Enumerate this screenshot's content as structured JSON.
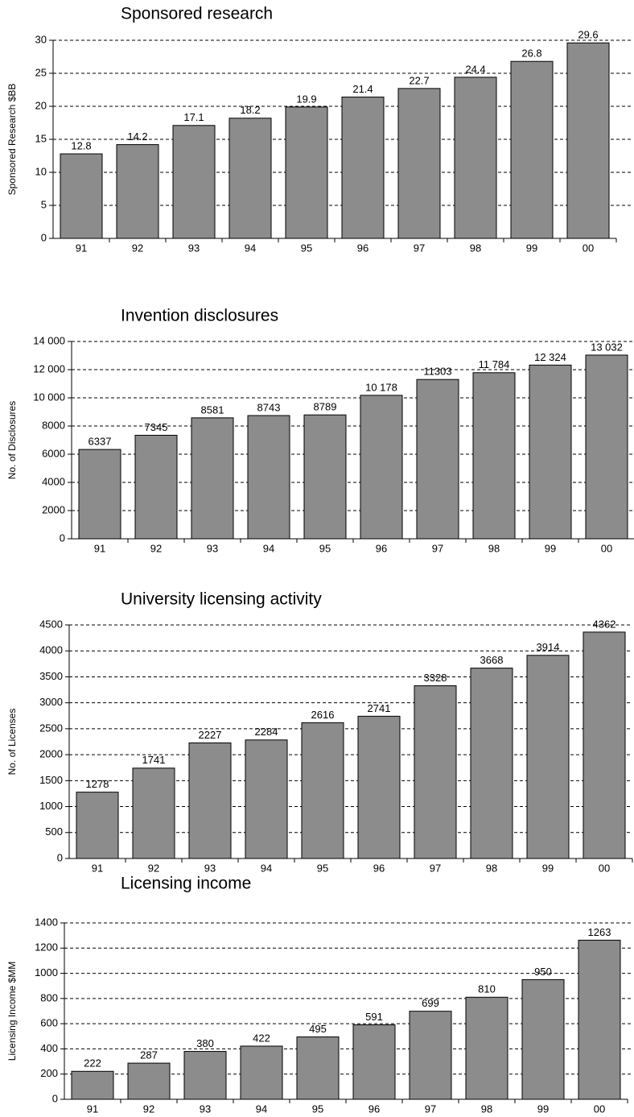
{
  "chart_data": [
    {
      "type": "bar",
      "title": "Sponsored research",
      "y_label": "Sponsored Research  $BB",
      "categories": [
        "91",
        "92",
        "93",
        "94",
        "95",
        "96",
        "97",
        "98",
        "99",
        "00"
      ],
      "values": [
        12.8,
        14.2,
        17.1,
        18.2,
        19.9,
        21.4,
        22.7,
        24.4,
        26.8,
        29.6
      ],
      "color": "#8c8c8c",
      "ylim": [
        0,
        30
      ],
      "yticks": [
        0,
        5,
        10,
        15,
        20,
        25,
        30
      ],
      "grid": true
    },
    {
      "type": "bar",
      "title": "Invention disclosures",
      "y_label": "No. of Disclosures",
      "categories": [
        "91",
        "92",
        "93",
        "94",
        "95",
        "96",
        "97",
        "98",
        "99",
        "00"
      ],
      "values": [
        6337,
        7345,
        8581,
        8743,
        8789,
        10178,
        11303,
        11784,
        12324,
        13032
      ],
      "value_labels": [
        "6337",
        "7345",
        "8581",
        "8743",
        "8789",
        "10 178",
        "11303",
        "11 784",
        "12 324",
        "13 032"
      ],
      "color": "#8c8c8c",
      "ylim": [
        0,
        14000
      ],
      "yticks": [
        0,
        2000,
        4000,
        6000,
        8000,
        {
          "value": 10000,
          "label": "10 000"
        },
        {
          "value": 12000,
          "label": "12 000"
        },
        {
          "value": 14000,
          "label": "14 000"
        }
      ],
      "grid": true
    },
    {
      "type": "bar",
      "title": "University licensing activity",
      "y_label": "No. of Licenses",
      "categories": [
        "91",
        "92",
        "93",
        "94",
        "95",
        "96",
        "97",
        "98",
        "99",
        "00"
      ],
      "values": [
        1278,
        1741,
        2227,
        2284,
        2616,
        2741,
        3328,
        3668,
        3914,
        4362
      ],
      "color": "#8c8c8c",
      "ylim": [
        0,
        4500
      ],
      "yticks": [
        0,
        500,
        1000,
        1500,
        2000,
        2500,
        3000,
        3500,
        4000,
        4500
      ],
      "grid": true
    },
    {
      "type": "bar",
      "title": "Licensing income",
      "y_label": "Licensing Income $MM",
      "categories": [
        "91",
        "92",
        "93",
        "94",
        "95",
        "96",
        "97",
        "98",
        "99",
        "00"
      ],
      "values": [
        222,
        287,
        380,
        422,
        495,
        591,
        699,
        810,
        950,
        1263
      ],
      "color": "#8c8c8c",
      "ylim": [
        0,
        1400
      ],
      "yticks": [
        0,
        200,
        400,
        600,
        800,
        1000,
        1200,
        1400
      ],
      "grid": true
    }
  ]
}
